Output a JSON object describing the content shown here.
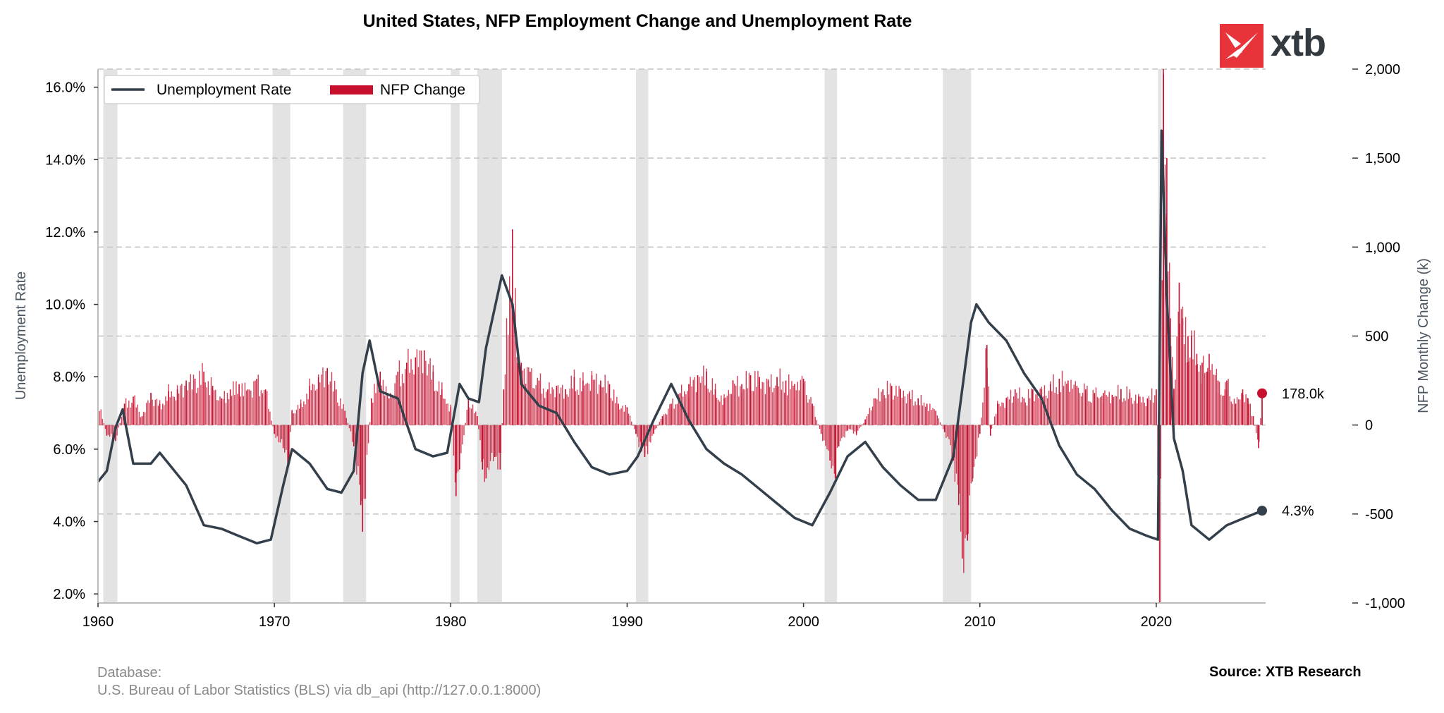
{
  "title": "United States, NFP Employment Change and Unemployment Rate",
  "logo": {
    "text": "xtb",
    "brand_color": "#e8333b",
    "text_color": "#333a40",
    "icon": "xtb-x-mark"
  },
  "footer": {
    "database_label": "Database:",
    "database_source": "U.S. Bureau of Labor Statistics (BLS) via db_api (http://127.0.0.1:8000)",
    "source": "Source: XTB Research"
  },
  "chart_data": {
    "type": "line+bar",
    "title": "United States, NFP Employment Change and Unemployment Rate",
    "ylabel_left": "Unemployment Rate",
    "ylabel_right": "NFP Monthly Change (k)",
    "x_ticks": [
      "1960",
      "1970",
      "1980",
      "1990",
      "2000",
      "2010",
      "2020"
    ],
    "y_left_ticks": [
      "2.0%",
      "4.0%",
      "6.0%",
      "8.0%",
      "10.0%",
      "12.0%",
      "14.0%",
      "16.0%"
    ],
    "y_right_ticks": [
      "2,000",
      "1,500",
      "1,000",
      "500",
      "0",
      "-500",
      "-1,000"
    ],
    "xlim": [
      1960,
      2026.2
    ],
    "ylim_left": [
      1.75,
      16.5
    ],
    "ylim_right": [
      -1000,
      2000
    ],
    "grid": "horizontal dashed",
    "legend_position": "top-left",
    "colors": {
      "unemployment": "#333f4b",
      "nfp": "#c8102e",
      "recession": "#e3e3e3"
    },
    "recessions": [
      [
        1960.3,
        1961.1
      ],
      [
        1969.9,
        1970.9
      ],
      [
        1973.9,
        1975.2
      ],
      [
        1980.0,
        1980.5
      ],
      [
        1981.5,
        1982.9
      ],
      [
        1990.5,
        1991.2
      ],
      [
        2001.2,
        2001.9
      ],
      [
        2007.9,
        2009.5
      ],
      [
        2020.1,
        2020.3
      ]
    ],
    "series": [
      {
        "name": "Unemployment Rate",
        "kind": "line",
        "axis": "left",
        "points": [
          [
            1960.0,
            5.1
          ],
          [
            1960.5,
            5.4
          ],
          [
            1961.0,
            6.6
          ],
          [
            1961.4,
            7.1
          ],
          [
            1962.0,
            5.6
          ],
          [
            1963.0,
            5.6
          ],
          [
            1963.5,
            5.9
          ],
          [
            1964.0,
            5.6
          ],
          [
            1965.0,
            5.0
          ],
          [
            1966.0,
            3.9
          ],
          [
            1967.0,
            3.8
          ],
          [
            1968.0,
            3.6
          ],
          [
            1969.0,
            3.4
          ],
          [
            1969.8,
            3.5
          ],
          [
            1970.5,
            5.0
          ],
          [
            1971.0,
            6.0
          ],
          [
            1972.0,
            5.6
          ],
          [
            1973.0,
            4.9
          ],
          [
            1973.8,
            4.8
          ],
          [
            1974.5,
            5.4
          ],
          [
            1975.0,
            8.1
          ],
          [
            1975.4,
            9.0
          ],
          [
            1976.0,
            7.6
          ],
          [
            1977.0,
            7.4
          ],
          [
            1978.0,
            6.0
          ],
          [
            1979.0,
            5.8
          ],
          [
            1979.8,
            5.9
          ],
          [
            1980.5,
            7.8
          ],
          [
            1981.0,
            7.4
          ],
          [
            1981.6,
            7.3
          ],
          [
            1982.0,
            8.8
          ],
          [
            1982.9,
            10.8
          ],
          [
            1983.5,
            10.0
          ],
          [
            1984.0,
            7.8
          ],
          [
            1985.0,
            7.2
          ],
          [
            1986.0,
            7.0
          ],
          [
            1987.0,
            6.2
          ],
          [
            1988.0,
            5.5
          ],
          [
            1989.0,
            5.3
          ],
          [
            1990.0,
            5.4
          ],
          [
            1990.6,
            5.8
          ],
          [
            1991.5,
            6.8
          ],
          [
            1992.5,
            7.8
          ],
          [
            1993.5,
            6.8
          ],
          [
            1994.5,
            6.0
          ],
          [
            1995.5,
            5.6
          ],
          [
            1996.5,
            5.3
          ],
          [
            1997.5,
            4.9
          ],
          [
            1998.5,
            4.5
          ],
          [
            1999.5,
            4.1
          ],
          [
            2000.5,
            3.9
          ],
          [
            2001.5,
            4.8
          ],
          [
            2002.5,
            5.8
          ],
          [
            2003.5,
            6.2
          ],
          [
            2004.5,
            5.5
          ],
          [
            2005.5,
            5.0
          ],
          [
            2006.5,
            4.6
          ],
          [
            2007.5,
            4.6
          ],
          [
            2008.5,
            5.8
          ],
          [
            2009.5,
            9.5
          ],
          [
            2009.8,
            10.0
          ],
          [
            2010.5,
            9.5
          ],
          [
            2011.5,
            9.0
          ],
          [
            2012.5,
            8.1
          ],
          [
            2013.5,
            7.4
          ],
          [
            2014.5,
            6.1
          ],
          [
            2015.5,
            5.3
          ],
          [
            2016.5,
            4.9
          ],
          [
            2017.5,
            4.3
          ],
          [
            2018.5,
            3.8
          ],
          [
            2019.5,
            3.6
          ],
          [
            2020.1,
            3.5
          ],
          [
            2020.3,
            14.8
          ],
          [
            2020.6,
            10.2
          ],
          [
            2021.0,
            6.3
          ],
          [
            2021.5,
            5.4
          ],
          [
            2022.0,
            3.9
          ],
          [
            2023.0,
            3.5
          ],
          [
            2024.0,
            3.9
          ],
          [
            2025.0,
            4.1
          ],
          [
            2026.0,
            4.3
          ]
        ]
      },
      {
        "name": "NFP Change",
        "kind": "bar",
        "axis": "right",
        "points": [
          [
            1960.0,
            150
          ],
          [
            1960.5,
            -60
          ],
          [
            1961.0,
            -90
          ],
          [
            1961.5,
            120
          ],
          [
            1962.0,
            160
          ],
          [
            1962.5,
            50
          ],
          [
            1963.0,
            180
          ],
          [
            1963.5,
            120
          ],
          [
            1964.0,
            190
          ],
          [
            1964.5,
            200
          ],
          [
            1965.0,
            250
          ],
          [
            1965.5,
            260
          ],
          [
            1966.0,
            300
          ],
          [
            1966.5,
            220
          ],
          [
            1967.0,
            150
          ],
          [
            1967.5,
            200
          ],
          [
            1968.0,
            230
          ],
          [
            1968.5,
            200
          ],
          [
            1969.0,
            260
          ],
          [
            1969.5,
            200
          ],
          [
            1970.0,
            -50
          ],
          [
            1970.5,
            -130
          ],
          [
            1970.8,
            -230
          ],
          [
            1971.0,
            80
          ],
          [
            1971.5,
            120
          ],
          [
            1972.0,
            220
          ],
          [
            1972.5,
            270
          ],
          [
            1973.0,
            320
          ],
          [
            1973.5,
            200
          ],
          [
            1974.0,
            80
          ],
          [
            1974.5,
            -120
          ],
          [
            1974.9,
            -450
          ],
          [
            1975.0,
            -600
          ],
          [
            1975.5,
            150
          ],
          [
            1976.0,
            300
          ],
          [
            1976.5,
            150
          ],
          [
            1977.0,
            300
          ],
          [
            1977.5,
            350
          ],
          [
            1978.0,
            380
          ],
          [
            1978.5,
            420
          ],
          [
            1979.0,
            300
          ],
          [
            1979.5,
            200
          ],
          [
            1980.0,
            100
          ],
          [
            1980.3,
            -400
          ],
          [
            1980.5,
            -250
          ],
          [
            1981.0,
            150
          ],
          [
            1981.5,
            50
          ],
          [
            1981.8,
            -250
          ],
          [
            1982.0,
            -300
          ],
          [
            1982.5,
            -180
          ],
          [
            1982.8,
            -250
          ],
          [
            1983.0,
            200
          ],
          [
            1983.5,
            1100
          ],
          [
            1983.8,
            350
          ],
          [
            1984.0,
            350
          ],
          [
            1984.5,
            300
          ],
          [
            1985.0,
            250
          ],
          [
            1985.5,
            200
          ],
          [
            1986.0,
            220
          ],
          [
            1986.5,
            200
          ],
          [
            1987.0,
            270
          ],
          [
            1987.5,
            250
          ],
          [
            1988.0,
            280
          ],
          [
            1988.5,
            250
          ],
          [
            1989.0,
            230
          ],
          [
            1989.5,
            120
          ],
          [
            1990.0,
            100
          ],
          [
            1990.5,
            -50
          ],
          [
            1990.8,
            -150
          ],
          [
            1991.0,
            -180
          ],
          [
            1991.5,
            -50
          ],
          [
            1992.0,
            50
          ],
          [
            1992.5,
            120
          ],
          [
            1993.0,
            180
          ],
          [
            1993.5,
            230
          ],
          [
            1994.0,
            280
          ],
          [
            1994.5,
            300
          ],
          [
            1995.0,
            200
          ],
          [
            1995.5,
            150
          ],
          [
            1996.0,
            250
          ],
          [
            1996.5,
            230
          ],
          [
            1997.0,
            280
          ],
          [
            1997.5,
            270
          ],
          [
            1998.0,
            250
          ],
          [
            1998.5,
            270
          ],
          [
            1999.0,
            250
          ],
          [
            1999.5,
            230
          ],
          [
            2000.0,
            260
          ],
          [
            2000.5,
            120
          ],
          [
            2001.0,
            -50
          ],
          [
            2001.5,
            -200
          ],
          [
            2001.8,
            -300
          ],
          [
            2002.0,
            -120
          ],
          [
            2002.5,
            -30
          ],
          [
            2003.0,
            -50
          ],
          [
            2003.5,
            30
          ],
          [
            2004.0,
            150
          ],
          [
            2004.5,
            200
          ],
          [
            2005.0,
            220
          ],
          [
            2005.5,
            200
          ],
          [
            2006.0,
            180
          ],
          [
            2006.5,
            150
          ],
          [
            2007.0,
            120
          ],
          [
            2007.5,
            80
          ],
          [
            2008.0,
            -40
          ],
          [
            2008.5,
            -200
          ],
          [
            2008.8,
            -450
          ],
          [
            2009.0,
            -750
          ],
          [
            2009.3,
            -650
          ],
          [
            2009.6,
            -300
          ],
          [
            2010.0,
            -50
          ],
          [
            2010.4,
            450
          ],
          [
            2010.6,
            -60
          ],
          [
            2011.0,
            120
          ],
          [
            2011.5,
            150
          ],
          [
            2012.0,
            200
          ],
          [
            2012.5,
            150
          ],
          [
            2013.0,
            200
          ],
          [
            2013.5,
            200
          ],
          [
            2014.0,
            230
          ],
          [
            2014.5,
            260
          ],
          [
            2015.0,
            250
          ],
          [
            2015.5,
            220
          ],
          [
            2016.0,
            200
          ],
          [
            2016.5,
            180
          ],
          [
            2017.0,
            180
          ],
          [
            2017.5,
            170
          ],
          [
            2018.0,
            200
          ],
          [
            2018.5,
            180
          ],
          [
            2019.0,
            160
          ],
          [
            2019.5,
            150
          ],
          [
            2020.0,
            200
          ],
          [
            2020.2,
            -1000
          ],
          [
            2020.4,
            2000
          ],
          [
            2020.6,
            1500
          ],
          [
            2020.8,
            600
          ],
          [
            2021.0,
            200
          ],
          [
            2021.3,
            800
          ],
          [
            2021.5,
            600
          ],
          [
            2021.8,
            500
          ],
          [
            2022.0,
            500
          ],
          [
            2022.3,
            400
          ],
          [
            2022.6,
            350
          ],
          [
            2022.9,
            300
          ],
          [
            2023.0,
            400
          ],
          [
            2023.5,
            250
          ],
          [
            2023.9,
            200
          ],
          [
            2024.0,
            250
          ],
          [
            2024.5,
            120
          ],
          [
            2024.9,
            200
          ],
          [
            2025.2,
            150
          ],
          [
            2025.5,
            50
          ],
          [
            2025.8,
            -130
          ],
          [
            2026.0,
            178
          ]
        ]
      }
    ],
    "annotations": [
      {
        "label": "178.0k",
        "series": "NFP Change",
        "value": 178.0,
        "x": 2026.0
      },
      {
        "label": "4.3%",
        "series": "Unemployment Rate",
        "value": 4.3,
        "x": 2026.0
      }
    ],
    "legend": [
      {
        "name": "Unemployment Rate",
        "symbol": "line"
      },
      {
        "name": "NFP Change",
        "symbol": "bar"
      }
    ]
  }
}
